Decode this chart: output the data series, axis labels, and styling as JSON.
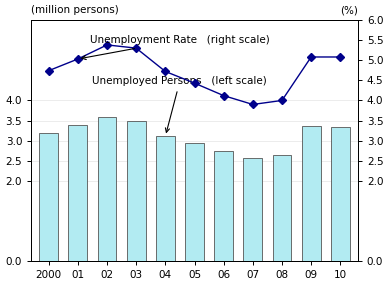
{
  "years": [
    "2000",
    "01",
    "02",
    "03",
    "04",
    "05",
    "06",
    "07",
    "08",
    "09",
    "10"
  ],
  "unemployed_persons": [
    3.2,
    3.4,
    3.59,
    3.5,
    3.11,
    2.95,
    2.74,
    2.57,
    2.65,
    3.36,
    3.34
  ],
  "unemployment_rate": [
    4.74,
    5.03,
    5.38,
    5.3,
    4.72,
    4.43,
    4.12,
    3.9,
    4.0,
    5.08,
    5.08
  ],
  "bar_color": "#b2ebf2",
  "bar_edge_color": "#555555",
  "line_color": "#00008B",
  "marker_color": "#00008B",
  "left_ylim": [
    0.0,
    6.0
  ],
  "right_ylim": [
    0.0,
    6.0
  ],
  "left_label": "(million persons)",
  "right_label": "(%)",
  "annotation_rate_text": "Unemployment Rate   (right scale)",
  "annotation_persons_text": "Unemployed Persons   (left scale)",
  "bg_color": "#ffffff",
  "figure_width": 3.89,
  "figure_height": 2.86,
  "dpi": 100
}
